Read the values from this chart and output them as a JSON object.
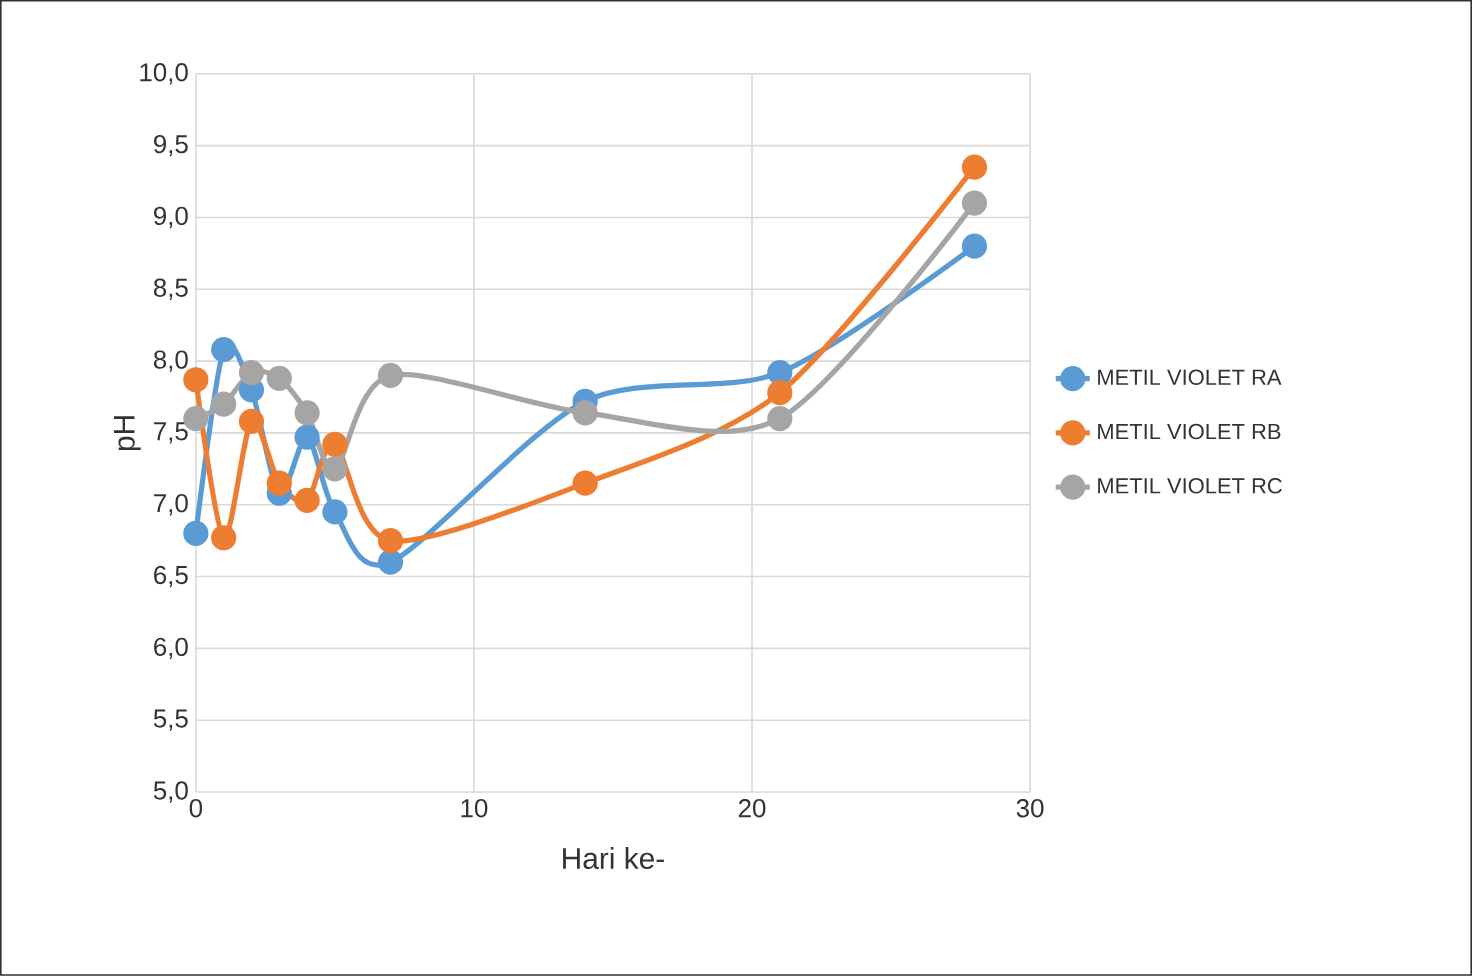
{
  "chart_data": {
    "type": "line",
    "xlabel": "Hari ke-",
    "ylabel": "pH",
    "xlim": [
      0,
      30
    ],
    "xticks": [
      0,
      10,
      20,
      30
    ],
    "ylim": [
      5.0,
      10.0
    ],
    "yticks": [
      {
        "value": 5.0,
        "label": "5,0"
      },
      {
        "value": 5.5,
        "label": "5,5"
      },
      {
        "value": 6.0,
        "label": "6,0"
      },
      {
        "value": 6.5,
        "label": "6,5"
      },
      {
        "value": 7.0,
        "label": "7,0"
      },
      {
        "value": 7.5,
        "label": "7,5"
      },
      {
        "value": 8.0,
        "label": "8,0"
      },
      {
        "value": 8.5,
        "label": "8,5"
      },
      {
        "value": 9.0,
        "label": "9,0"
      },
      {
        "value": 9.5,
        "label": "9,5"
      },
      {
        "value": 10.0,
        "label": "10,0"
      }
    ],
    "grid": true,
    "legend": "right",
    "marker": "circle",
    "x": [
      0,
      1,
      2,
      3,
      4,
      5,
      7,
      14,
      21,
      28
    ],
    "series": [
      {
        "name": "METIL VIOLET RA",
        "color": "#5b9bd5",
        "values": [
          6.8,
          8.08,
          7.8,
          7.08,
          7.47,
          6.95,
          6.6,
          7.72,
          7.92,
          8.8
        ]
      },
      {
        "name": "METIL VIOLET RB",
        "color": "#ed7d31",
        "values": [
          7.87,
          6.77,
          7.58,
          7.15,
          7.03,
          7.42,
          6.75,
          7.15,
          7.78,
          9.35
        ]
      },
      {
        "name": "METIL VIOLET RC",
        "color": "#a5a5a5",
        "values": [
          7.6,
          7.7,
          7.92,
          7.88,
          7.64,
          7.25,
          7.9,
          7.64,
          7.6,
          9.1
        ]
      }
    ]
  }
}
